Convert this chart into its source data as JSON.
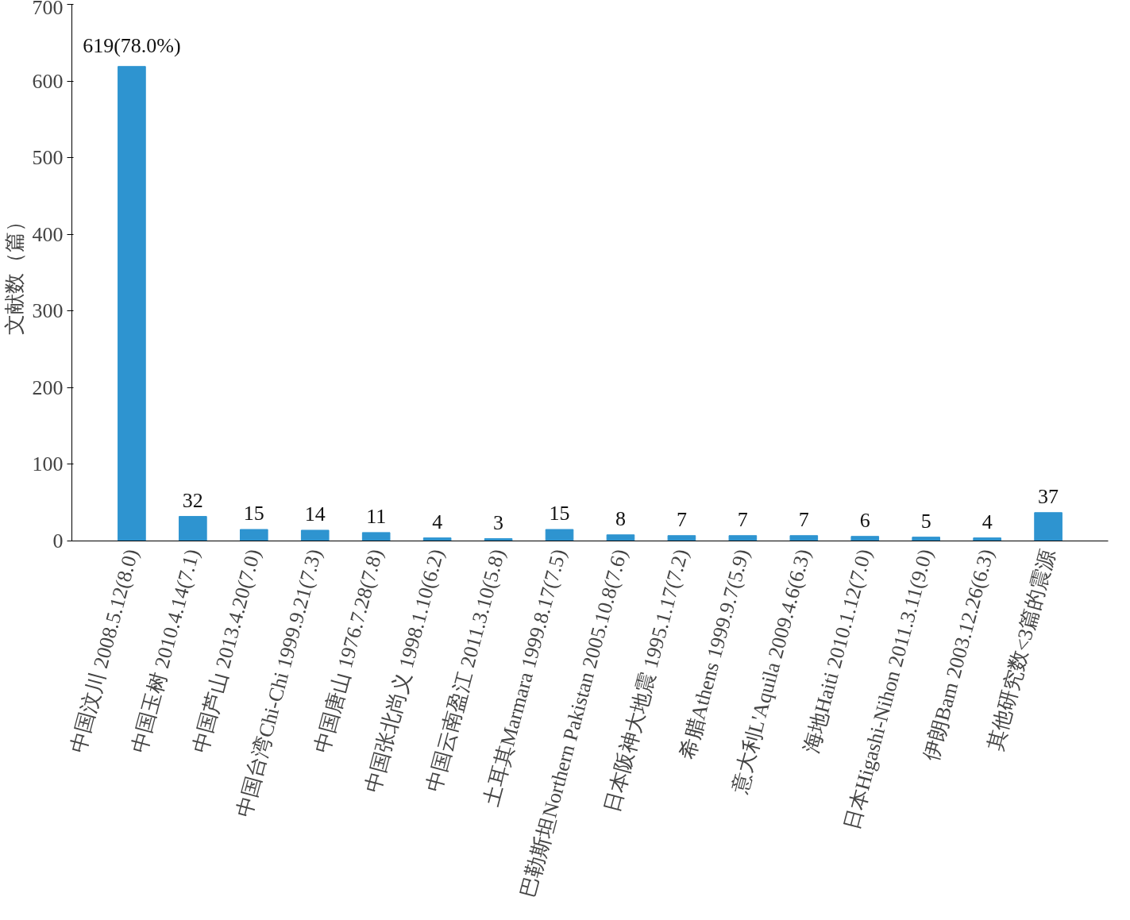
{
  "chart_data": {
    "type": "bar",
    "ylabel": "文献数（篇）",
    "categories": [
      "中国汶川 2008.5.12(8.0)",
      "中国玉树 2010.4.14(7.1)",
      "中国芦山 2013.4.20(7.0)",
      "中国台湾Chi-Chi 1999.9.21(7.3)",
      "中国唐山 1976.7.28(7.8)",
      "中国张北尚义 1998.1.10(6.2)",
      "中国云南盈江 2011.3.10(5.8)",
      "土耳其Marmara 1999.8.17(7.5)",
      "巴勒斯坦Northern Pakistan 2005.10.8(7.6)",
      "日本阪神大地震 1995.1.17(7.2)",
      "希腊Athens 1999.9.7(5.9)",
      "意大利L'Aquila 2009.4.6(6.3)",
      "海地Haiti 2010.1.12(7.0)",
      "日本Higashi-Nihon 2011.3.11(9.0)",
      "伊朗Bam 2003.12.26(6.3)",
      "其他研究数<3篇的震源"
    ],
    "values": [
      619,
      32,
      15,
      14,
      11,
      4,
      3,
      15,
      8,
      7,
      7,
      7,
      6,
      5,
      4,
      37
    ],
    "value_labels": [
      "619(78.0%)",
      "32",
      "15",
      "14",
      "11",
      "4",
      "3",
      "15",
      "8",
      "7",
      "7",
      "7",
      "6",
      "5",
      "4",
      "37"
    ],
    "color": "#2e94d0",
    "ylim": [
      0,
      700
    ],
    "yticks": [
      0,
      100,
      200,
      300,
      400,
      500,
      600,
      700
    ],
    "grid": false
  }
}
